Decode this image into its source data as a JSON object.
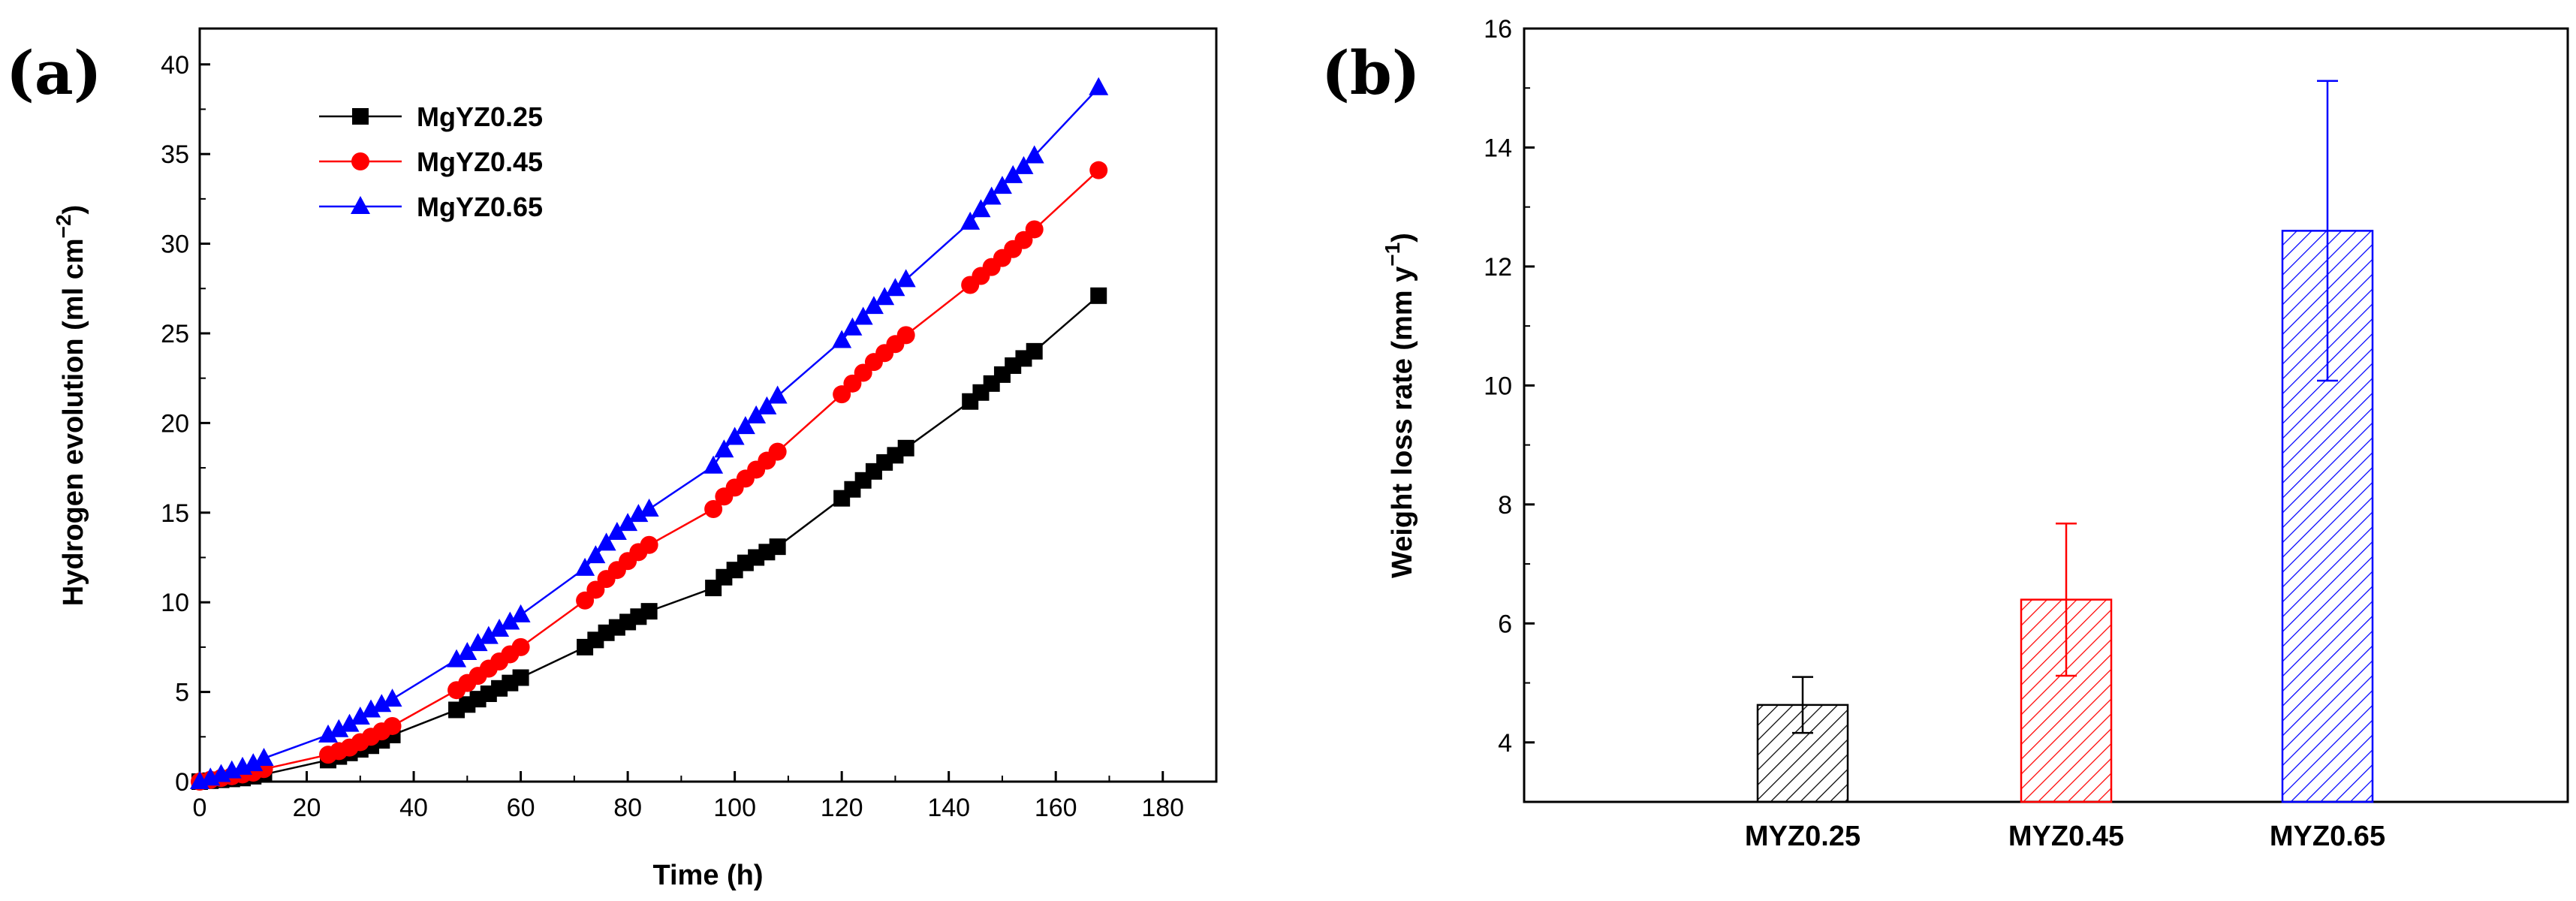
{
  "chart_data": [
    {
      "panel": "(a)",
      "type": "line",
      "xlabel": "Time (h)",
      "ylabel_main": "Hydrogen evolution (ml cm",
      "ylabel_sup": "−2",
      "ylabel_close": ")",
      "xlim": [
        0,
        190
      ],
      "ylim": [
        0,
        42
      ],
      "x_ticks": [
        "0",
        "20",
        "40",
        "60",
        "80",
        "100",
        "120",
        "140",
        "160",
        "180"
      ],
      "y_ticks": [
        "0",
        "5",
        "10",
        "15",
        "20",
        "25",
        "30",
        "35",
        "40"
      ],
      "grid": false,
      "legend_position": "top-left",
      "x": [
        0,
        2,
        4,
        6,
        8,
        10,
        12,
        24,
        26,
        28,
        30,
        32,
        34,
        36,
        48,
        50,
        52,
        54,
        56,
        58,
        60,
        72,
        74,
        76,
        78,
        80,
        82,
        84,
        96,
        98,
        100,
        102,
        104,
        106,
        108,
        120,
        122,
        124,
        126,
        128,
        130,
        132,
        144,
        146,
        148,
        150,
        152,
        154,
        156,
        168
      ],
      "series": [
        {
          "name": "MgYZ0.25",
          "color": "#000000",
          "marker": "square",
          "values": [
            0.0,
            0.05,
            0.1,
            0.15,
            0.2,
            0.3,
            0.4,
            1.2,
            1.4,
            1.6,
            1.8,
            2.0,
            2.3,
            2.6,
            4.0,
            4.3,
            4.6,
            4.9,
            5.2,
            5.5,
            5.8,
            7.5,
            7.9,
            8.3,
            8.6,
            8.9,
            9.2,
            9.5,
            10.8,
            11.4,
            11.8,
            12.2,
            12.5,
            12.8,
            13.1,
            15.8,
            16.3,
            16.8,
            17.3,
            17.8,
            18.2,
            18.6,
            21.2,
            21.7,
            22.2,
            22.7,
            23.2,
            23.6,
            24.0,
            27.1
          ]
        },
        {
          "name": "MgYZ0.45",
          "color": "#ff0000",
          "marker": "circle",
          "values": [
            0.0,
            0.1,
            0.2,
            0.3,
            0.4,
            0.5,
            0.7,
            1.5,
            1.7,
            1.9,
            2.2,
            2.5,
            2.8,
            3.1,
            5.1,
            5.5,
            5.9,
            6.3,
            6.7,
            7.1,
            7.5,
            10.1,
            10.7,
            11.3,
            11.8,
            12.3,
            12.8,
            13.2,
            15.2,
            15.9,
            16.4,
            16.9,
            17.4,
            17.9,
            18.4,
            21.6,
            22.2,
            22.8,
            23.4,
            23.9,
            24.4,
            24.9,
            27.7,
            28.2,
            28.7,
            29.2,
            29.7,
            30.2,
            30.8,
            34.1
          ]
        },
        {
          "name": "MgYZ0.65",
          "color": "#0000ff",
          "marker": "triangle",
          "values": [
            0.0,
            0.2,
            0.4,
            0.6,
            0.8,
            1.0,
            1.3,
            2.6,
            2.9,
            3.2,
            3.6,
            4.0,
            4.3,
            4.6,
            6.8,
            7.2,
            7.7,
            8.1,
            8.5,
            8.9,
            9.3,
            11.9,
            12.6,
            13.3,
            13.9,
            14.4,
            14.9,
            15.2,
            17.6,
            18.5,
            19.2,
            19.8,
            20.4,
            20.9,
            21.5,
            24.6,
            25.3,
            25.9,
            26.5,
            27.0,
            27.5,
            28.0,
            31.2,
            31.9,
            32.6,
            33.2,
            33.8,
            34.3,
            34.9,
            38.7
          ]
        }
      ]
    },
    {
      "panel": "(b)",
      "type": "bar",
      "ylabel_main": "Weight loss rate (mm y",
      "ylabel_sup": "−1",
      "ylabel_close": ")",
      "categories": [
        "MYZ0.25",
        "MYZ0.45",
        "MYZ0.65"
      ],
      "values": [
        4.63,
        6.4,
        12.6
      ],
      "errors": [
        0.47,
        1.28,
        2.52
      ],
      "colors": [
        "#000000",
        "#ff0000",
        "#0000ff"
      ],
      "fill": "diagonal hatch",
      "ylim": [
        3,
        16
      ],
      "y_ticks": [
        "4",
        "6",
        "8",
        "10",
        "12",
        "14",
        "16"
      ],
      "grid": false
    }
  ]
}
